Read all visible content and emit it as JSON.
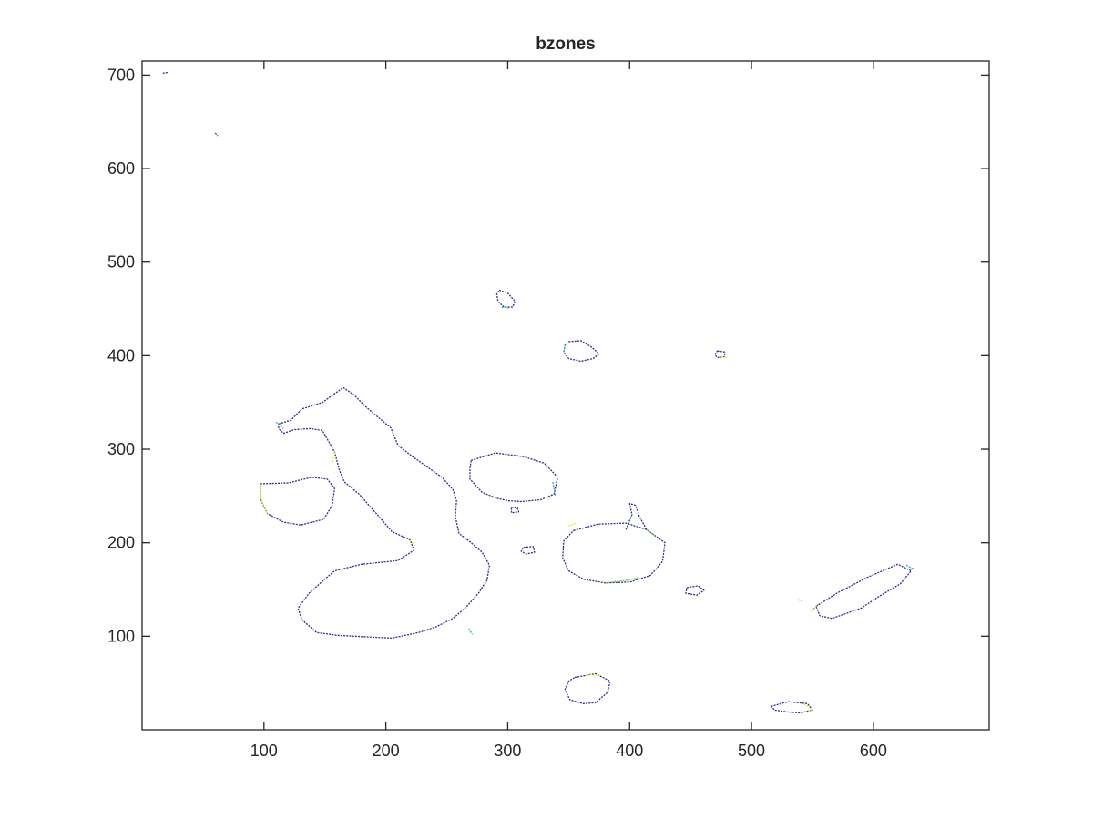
{
  "chart_data": {
    "type": "scatter",
    "title": "bzones",
    "xlabel": "",
    "ylabel": "",
    "xlim": [
      0,
      695
    ],
    "ylim": [
      0,
      715
    ],
    "xticks": [
      100,
      200,
      300,
      400,
      500,
      600
    ],
    "yticks": [
      100,
      200,
      300,
      400,
      500,
      600,
      700
    ],
    "grid": false,
    "colors": {
      "boundary": "#2b2f8a",
      "teal": "#2aa7c9",
      "yellow": "#f2e92a",
      "green": "#8dbb3d",
      "axis": "#262626"
    },
    "series": [
      {
        "color": "boundary",
        "closed": false,
        "points": [
          [
            17,
            702
          ],
          [
            22,
            703
          ]
        ]
      },
      {
        "color": "boundary",
        "closed": false,
        "points": [
          [
            60,
            638
          ],
          [
            62,
            635
          ]
        ]
      },
      {
        "color": "boundary",
        "closed": true,
        "points": [
          [
            293,
            470
          ],
          [
            300,
            467
          ],
          [
            306,
            458
          ],
          [
            304,
            452
          ],
          [
            297,
            452
          ],
          [
            292,
            458
          ],
          [
            291,
            466
          ]
        ]
      },
      {
        "color": "boundary",
        "closed": true,
        "points": [
          [
            350,
            415
          ],
          [
            360,
            416
          ],
          [
            368,
            410
          ],
          [
            375,
            402
          ],
          [
            370,
            397
          ],
          [
            360,
            394
          ],
          [
            350,
            397
          ],
          [
            346,
            404
          ],
          [
            347,
            411
          ]
        ]
      },
      {
        "color": "boundary",
        "closed": true,
        "points": [
          [
            472,
            405
          ],
          [
            478,
            404
          ],
          [
            478,
            399
          ],
          [
            472,
            398
          ],
          [
            470,
            401
          ]
        ]
      },
      {
        "color": "boundary",
        "closed": true,
        "points": [
          [
            112,
            327
          ],
          [
            122,
            331
          ],
          [
            131,
            343
          ],
          [
            148,
            350
          ],
          [
            165,
            366
          ],
          [
            174,
            358
          ],
          [
            183,
            346
          ],
          [
            192,
            336
          ],
          [
            204,
            323
          ],
          [
            210,
            304
          ],
          [
            222,
            292
          ],
          [
            234,
            281
          ],
          [
            246,
            270
          ],
          [
            255,
            257
          ],
          [
            258,
            245
          ],
          [
            257,
            228
          ],
          [
            260,
            210
          ],
          [
            270,
            200
          ],
          [
            279,
            190
          ],
          [
            285,
            176
          ],
          [
            283,
            160
          ],
          [
            276,
            146
          ],
          [
            265,
            130
          ],
          [
            255,
            119
          ],
          [
            241,
            110
          ],
          [
            227,
            104
          ],
          [
            205,
            98
          ],
          [
            190,
            99
          ],
          [
            160,
            101
          ],
          [
            143,
            104
          ],
          [
            131,
            118
          ],
          [
            128,
            130
          ],
          [
            137,
            146
          ],
          [
            149,
            160
          ],
          [
            158,
            170
          ],
          [
            180,
            177
          ],
          [
            210,
            181
          ],
          [
            223,
            192
          ],
          [
            220,
            203
          ],
          [
            205,
            212
          ],
          [
            193,
            230
          ],
          [
            178,
            252
          ],
          [
            166,
            265
          ],
          [
            162,
            277
          ],
          [
            158,
            297
          ],
          [
            148,
            320
          ],
          [
            138,
            322
          ],
          [
            125,
            321
          ],
          [
            116,
            317
          ],
          [
            112,
            322
          ]
        ]
      },
      {
        "color": "boundary",
        "closed": true,
        "points": [
          [
            97,
            263
          ],
          [
            120,
            264
          ],
          [
            139,
            270
          ],
          [
            152,
            268
          ],
          [
            158,
            258
          ],
          [
            156,
            240
          ],
          [
            149,
            225
          ],
          [
            130,
            219
          ],
          [
            116,
            222
          ],
          [
            103,
            231
          ],
          [
            97,
            247
          ]
        ]
      },
      {
        "color": "boundary",
        "closed": true,
        "points": [
          [
            270,
            288
          ],
          [
            290,
            296
          ],
          [
            313,
            292
          ],
          [
            330,
            285
          ],
          [
            341,
            270
          ],
          [
            338,
            252
          ],
          [
            327,
            246
          ],
          [
            311,
            244
          ],
          [
            300,
            245
          ],
          [
            290,
            248
          ],
          [
            279,
            254
          ],
          [
            269,
            268
          ],
          [
            269,
            280
          ]
        ]
      },
      {
        "color": "boundary",
        "closed": true,
        "points": [
          [
            303,
            238
          ],
          [
            308,
            237
          ],
          [
            309,
            233
          ],
          [
            303,
            232
          ]
        ]
      },
      {
        "color": "boundary",
        "closed": true,
        "points": [
          [
            313,
            195
          ],
          [
            321,
            196
          ],
          [
            322,
            190
          ],
          [
            315,
            188
          ],
          [
            311,
            191
          ]
        ]
      },
      {
        "color": "boundary",
        "closed": true,
        "points": [
          [
            354,
            213
          ],
          [
            374,
            220
          ],
          [
            397,
            221
          ],
          [
            414,
            214
          ],
          [
            429,
            200
          ],
          [
            427,
            180
          ],
          [
            417,
            165
          ],
          [
            400,
            158
          ],
          [
            380,
            157
          ],
          [
            362,
            161
          ],
          [
            350,
            170
          ],
          [
            345,
            184
          ],
          [
            346,
            202
          ]
        ]
      },
      {
        "color": "boundary",
        "closed": false,
        "points": [
          [
            397,
            214
          ],
          [
            402,
            230
          ],
          [
            400,
            242
          ],
          [
            405,
            240
          ],
          [
            408,
            228
          ],
          [
            414,
            214
          ]
        ]
      },
      {
        "color": "boundary",
        "closed": true,
        "points": [
          [
            447,
            152
          ],
          [
            456,
            154
          ],
          [
            461,
            149
          ],
          [
            455,
            144
          ],
          [
            446,
            146
          ]
        ]
      },
      {
        "color": "boundary",
        "closed": true,
        "points": [
          [
            553,
            132
          ],
          [
            570,
            146
          ],
          [
            595,
            163
          ],
          [
            620,
            177
          ],
          [
            631,
            170
          ],
          [
            622,
            156
          ],
          [
            605,
            143
          ],
          [
            590,
            130
          ],
          [
            566,
            119
          ],
          [
            556,
            122
          ]
        ]
      },
      {
        "color": "boundary",
        "closed": true,
        "points": [
          [
            355,
            56
          ],
          [
            372,
            60
          ],
          [
            384,
            52
          ],
          [
            382,
            40
          ],
          [
            372,
            29
          ],
          [
            362,
            28
          ],
          [
            351,
            32
          ],
          [
            347,
            43
          ],
          [
            350,
            52
          ]
        ]
      },
      {
        "color": "boundary",
        "closed": true,
        "points": [
          [
            516,
            25
          ],
          [
            530,
            30
          ],
          [
            546,
            28
          ],
          [
            550,
            21
          ],
          [
            540,
            18
          ],
          [
            530,
            19
          ],
          [
            519,
            21
          ]
        ]
      },
      {
        "color": "teal",
        "closed": false,
        "points": [
          [
            110,
            329
          ],
          [
            116,
            322
          ]
        ]
      },
      {
        "color": "teal",
        "closed": false,
        "points": [
          [
            337,
            265
          ],
          [
            339,
            250
          ]
        ]
      },
      {
        "color": "teal",
        "closed": false,
        "points": [
          [
            268,
            108
          ],
          [
            271,
            102
          ]
        ]
      },
      {
        "color": "teal",
        "closed": false,
        "points": [
          [
            295,
            452
          ],
          [
            301,
            451
          ]
        ]
      },
      {
        "color": "teal",
        "closed": false,
        "points": [
          [
            346,
            404
          ],
          [
            347,
            412
          ]
        ]
      },
      {
        "color": "yellow",
        "closed": false,
        "points": [
          [
            97,
            263
          ],
          [
            98,
            245
          ],
          [
            103,
            231
          ]
        ]
      },
      {
        "color": "yellow",
        "closed": false,
        "points": [
          [
            158,
            297
          ],
          [
            156,
            284
          ]
        ]
      },
      {
        "color": "yellow",
        "closed": false,
        "points": [
          [
            220,
            203
          ],
          [
            224,
            196
          ]
        ]
      },
      {
        "color": "yellow",
        "closed": false,
        "points": [
          [
            350,
            218
          ],
          [
            356,
            221
          ]
        ]
      },
      {
        "color": "yellow",
        "closed": false,
        "points": [
          [
            365,
            59
          ],
          [
            376,
            58
          ]
        ]
      },
      {
        "color": "yellow",
        "closed": false,
        "points": [
          [
            543,
            28
          ],
          [
            550,
            21
          ],
          [
            545,
            18
          ]
        ]
      },
      {
        "color": "yellow",
        "closed": false,
        "points": [
          [
            475,
            399
          ],
          [
            479,
            398
          ]
        ]
      },
      {
        "color": "green",
        "closed": false,
        "points": [
          [
            380,
            157
          ],
          [
            398,
            160
          ],
          [
            408,
            163
          ]
        ]
      },
      {
        "color": "green",
        "closed": false,
        "points": [
          [
            549,
            127
          ],
          [
            555,
            134
          ]
        ]
      },
      {
        "color": "green",
        "closed": false,
        "points": [
          [
            414,
            214
          ],
          [
            421,
            207
          ]
        ]
      },
      {
        "color": "teal",
        "closed": false,
        "points": [
          [
            627,
            176
          ],
          [
            633,
            172
          ]
        ]
      },
      {
        "color": "teal",
        "closed": false,
        "points": [
          [
            538,
            139
          ],
          [
            542,
            138
          ]
        ]
      }
    ]
  }
}
